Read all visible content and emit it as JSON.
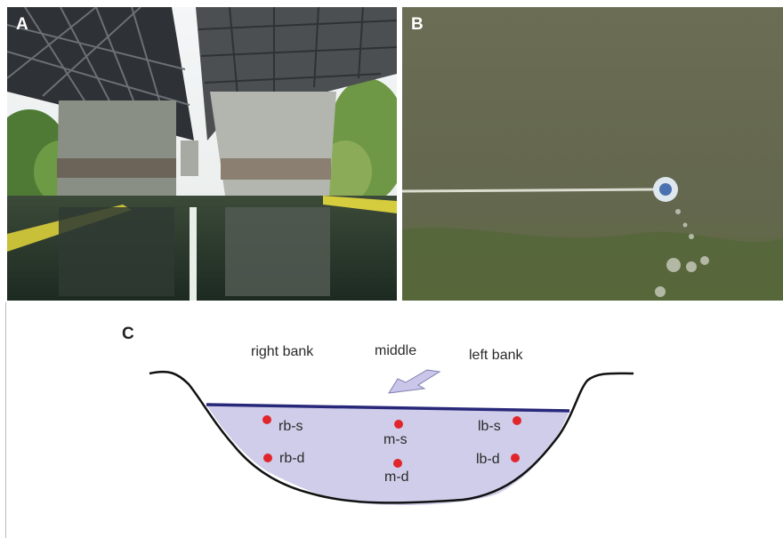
{
  "panel_a": {
    "letter": "A",
    "scene": "river under highway bridge with concrete piers and reflection"
  },
  "panel_b": {
    "letter": "B",
    "scene": "sampling float on line in greenish river water"
  },
  "panel_c": {
    "letter": "C",
    "headers": {
      "right_bank": "right bank",
      "middle": "middle",
      "left_bank": "left bank"
    },
    "points": {
      "rb_s": "rb-s",
      "rb_d": "rb-d",
      "m_s": "m-s",
      "m_d": "m-d",
      "lb_s": "lb-s",
      "lb_d": "lb-d"
    }
  },
  "colors": {
    "water_fill": "#cfcde9",
    "water_surface": "#28287a",
    "arrow_fill": "#c9c6ea",
    "point_red": "#e0262b"
  }
}
